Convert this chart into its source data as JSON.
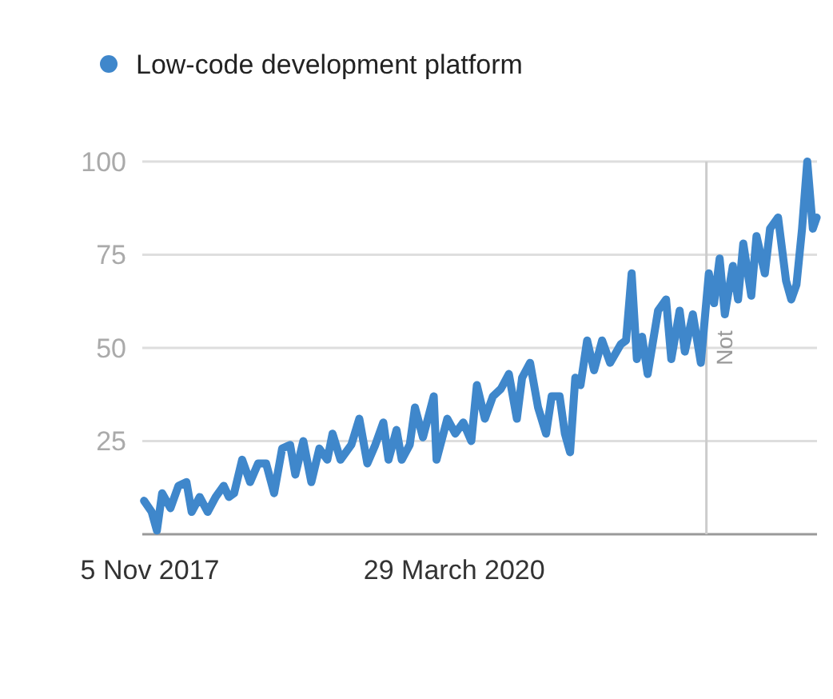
{
  "chart_data": {
    "type": "line",
    "x": [
      "2017-10-19",
      "2017-11-10",
      "2017-11-25",
      "2017-12-10",
      "2018-01-03",
      "2018-01-26",
      "2018-02-18",
      "2018-03-05",
      "2018-03-28",
      "2018-04-20",
      "2018-05-13",
      "2018-06-05",
      "2018-06-20",
      "2018-07-05",
      "2018-07-28",
      "2018-08-20",
      "2018-09-12",
      "2018-10-05",
      "2018-10-28",
      "2018-11-20",
      "2018-12-13",
      "2018-12-28",
      "2019-01-20",
      "2019-02-12",
      "2019-03-07",
      "2019-03-30",
      "2019-04-14",
      "2019-05-07",
      "2019-06-07",
      "2019-06-30",
      "2019-07-23",
      "2019-08-15",
      "2019-09-07",
      "2019-09-22",
      "2019-10-15",
      "2019-10-30",
      "2019-11-22",
      "2019-12-07",
      "2019-12-30",
      "2020-01-30",
      "2020-02-07",
      "2020-03-09",
      "2020-04-01",
      "2020-04-24",
      "2020-05-17",
      "2020-06-02",
      "2020-06-25",
      "2020-07-18",
      "2020-08-10",
      "2020-09-02",
      "2020-09-25",
      "2020-10-10",
      "2020-11-02",
      "2020-11-25",
      "2020-12-18",
      "2021-01-03",
      "2021-01-26",
      "2021-02-10",
      "2021-02-25",
      "2021-03-12",
      "2021-03-27",
      "2021-04-15",
      "2021-05-05",
      "2021-05-28",
      "2021-06-20",
      "2021-07-21",
      "2021-08-05",
      "2021-08-21",
      "2021-09-05",
      "2021-09-20",
      "2021-10-06",
      "2021-11-05",
      "2021-11-28",
      "2021-12-13",
      "2022-01-06",
      "2022-01-21",
      "2022-02-13",
      "2022-03-08",
      "2022-03-31",
      "2022-04-15",
      "2022-05-01",
      "2022-05-16",
      "2022-06-08",
      "2022-06-23",
      "2022-07-08",
      "2022-07-31",
      "2022-08-15",
      "2022-09-08",
      "2022-09-23",
      "2022-10-16",
      "2022-11-08",
      "2022-11-23",
      "2022-12-08",
      "2022-12-24",
      "2023-01-08",
      "2023-01-24",
      "2023-02-04"
    ],
    "series": [
      {
        "name": "Low-code development platform",
        "color": "#3f87cb",
        "values": [
          9,
          6,
          1,
          11,
          7,
          13,
          14,
          6,
          10,
          6,
          10,
          13,
          10,
          11,
          20,
          14,
          19,
          19,
          11,
          23,
          24,
          16,
          25,
          14,
          23,
          20,
          27,
          20,
          24,
          31,
          19,
          24,
          30,
          20,
          28,
          20,
          24,
          34,
          26,
          37,
          20,
          31,
          27,
          30,
          25,
          40,
          31,
          37,
          39,
          43,
          31,
          42,
          46,
          34,
          27,
          37,
          37,
          27,
          22,
          42,
          40,
          52,
          44,
          52,
          46,
          51,
          52,
          70,
          47,
          53,
          43,
          60,
          63,
          47,
          60,
          49,
          59,
          46,
          70,
          62,
          74,
          59,
          72,
          63,
          78,
          64,
          80,
          70,
          82,
          85,
          68,
          63,
          67,
          82,
          100,
          82,
          85
        ]
      }
    ],
    "xlim": [
      "2017-10-14",
      "2023-02-05"
    ],
    "xticks": [
      {
        "value": "2017-11-05",
        "label": "5 Nov 2017"
      },
      {
        "value": "2020-03-29",
        "label": "29 March 2020"
      }
    ],
    "ylim": [
      0,
      100
    ],
    "yticks": [
      25,
      50,
      75,
      100
    ],
    "grid": "y",
    "legend": "top left",
    "ref_lines": [
      {
        "axis": "x",
        "value": "2022-03-24",
        "label": "Not",
        "color": "#cccccc"
      }
    ]
  }
}
